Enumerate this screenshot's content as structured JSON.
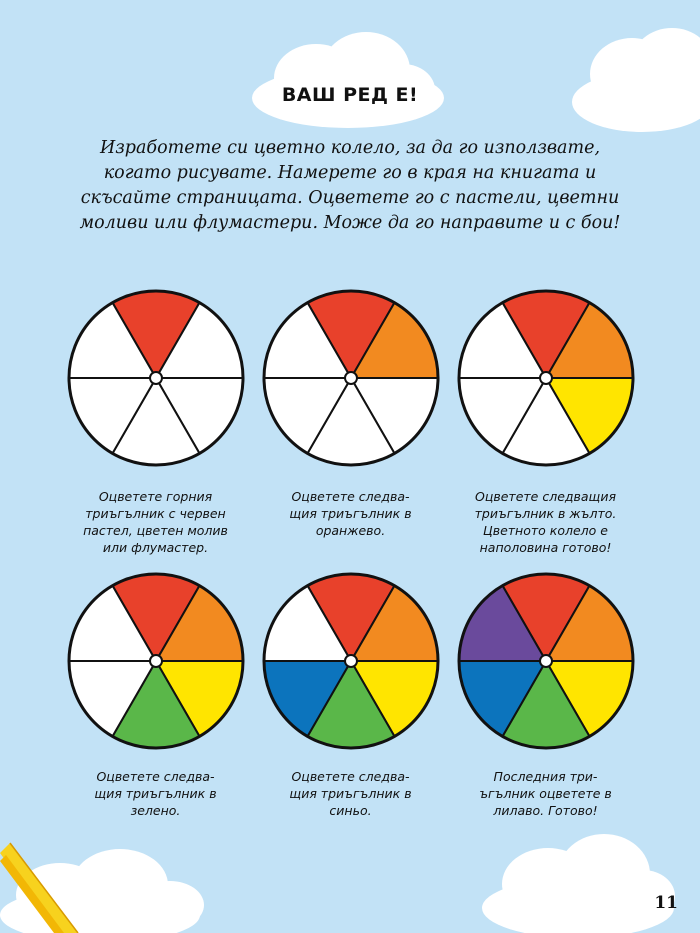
{
  "page": {
    "heading": "ВАШ РЕД Е!",
    "intro_lines": [
      "Изработете си цветно колело, за да го използвате,",
      "когато рисувате. Намерете го в края на книгата и",
      "скъсайте страницата. Оцветете го с пастели, цветни",
      "моливи или флумастери. Може да го направите и с бои!"
    ],
    "page_number": "11"
  },
  "colors": {
    "background": "#c2e2f6",
    "red": "#e8412b",
    "orange": "#f28a20",
    "yellow": "#ffe500",
    "green": "#5ab749",
    "blue": "#0c74bd",
    "purple": "#6a4a9c",
    "empty": "#ffffff"
  },
  "wheels": [
    {
      "segments": [
        "red",
        "empty",
        "empty",
        "empty",
        "empty",
        "empty"
      ],
      "caption_lines": [
        "Оцветете горния",
        "триъгълник с червен",
        "пастел, цветен молив",
        "или флумастер."
      ]
    },
    {
      "segments": [
        "red",
        "orange",
        "empty",
        "empty",
        "empty",
        "empty"
      ],
      "caption_lines": [
        "Оцветете следва-",
        "щия триъгълник в",
        "оранжево."
      ]
    },
    {
      "segments": [
        "red",
        "orange",
        "yellow",
        "empty",
        "empty",
        "empty"
      ],
      "caption_lines": [
        "Оцветете следващия",
        "триъгълник в жълто.",
        "Цветното колело е",
        "наполовина готово!"
      ]
    },
    {
      "segments": [
        "red",
        "orange",
        "yellow",
        "green",
        "empty",
        "empty"
      ],
      "caption_lines": [
        "Оцветете следва-",
        "щия триъгълник в",
        "зелено."
      ]
    },
    {
      "segments": [
        "red",
        "orange",
        "yellow",
        "green",
        "blue",
        "empty"
      ],
      "caption_lines": [
        "Оцветете следва-",
        "щия триъгълник в",
        "синьо."
      ]
    },
    {
      "segments": [
        "red",
        "orange",
        "yellow",
        "green",
        "blue",
        "purple"
      ],
      "caption_lines": [
        "Последния три-",
        "ъгълник оцветете в",
        "лилаво. Готово!"
      ]
    }
  ]
}
